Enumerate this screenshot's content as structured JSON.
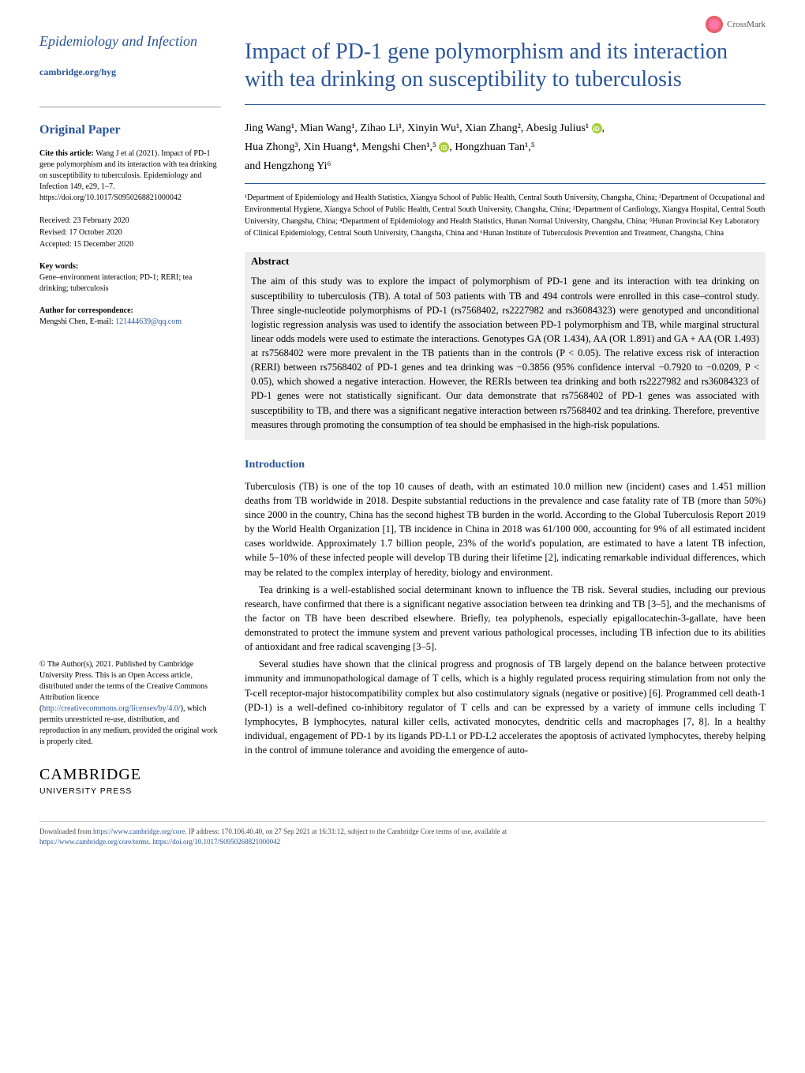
{
  "crossmark_label": "CrossMark",
  "journal": {
    "name": "Epidemiology and Infection",
    "link": "cambridge.org/hyg"
  },
  "sidebar": {
    "paper_type": "Original Paper",
    "cite_label": "Cite this article:",
    "cite_text": "Wang J et al (2021). Impact of PD-1 gene polymorphism and its interaction with tea drinking on susceptibility to tuberculosis. Epidemiology and Infection 149, e29, 1–7. https://doi.org/10.1017/S0950268821000042",
    "received": "Received: 23 February 2020",
    "revised": "Revised: 17 October 2020",
    "accepted": "Accepted: 15 December 2020",
    "kw_label": "Key words:",
    "kw_text": "Gene–environment interaction; PD-1; RERI; tea drinking; tuberculosis",
    "corr_label": "Author for correspondence:",
    "corr_name": "Mengshi Chen, E-mail: ",
    "corr_email": "121444639@qq.com",
    "license": "© The Author(s), 2021. Published by Cambridge University Press. This is an Open Access article, distributed under the terms of the Creative Commons Attribution licence (",
    "license_link": "http://creativecommons.org/licenses/by/4.0/",
    "license_tail": "), which permits unrestricted re-use, distribution, and reproduction in any medium, provided the original work is properly cited.",
    "cup_name": "CAMBRIDGE",
    "cup_sub": "UNIVERSITY PRESS"
  },
  "article": {
    "title": "Impact of PD-1 gene polymorphism and its interaction with tea drinking on susceptibility to tuberculosis",
    "authors_line1": "Jing Wang¹, Mian Wang¹, Zihao Li¹, Xinyin Wu¹, Xian Zhang², Abesig Julius¹",
    "authors_line2": "Hua Zhong³, Xin Huang⁴, Mengshi Chen¹,⁵",
    "authors_line3": "Hongzhuan Tan¹,⁵",
    "authors_line4": "and Hengzhong Yi⁶",
    "affiliations": "¹Department of Epidemiology and Health Statistics, Xiangya School of Public Health, Central South University, Changsha, China; ²Department of Occupational and Environmental Hygiene, Xiangya School of Public Health, Central South University, Changsha, China; ³Department of Cardiology, Xiangya Hospital, Central South University, Changsha, China; ⁴Department of Epidemiology and Health Statistics, Hunan Normal University, Changsha, China; ⁵Hunan Provincial Key Laboratory of Clinical Epidemiology, Central South University, Changsha, China and ⁶Hunan Institute of Tuberculosis Prevention and Treatment, Changsha, China",
    "abstract_label": "Abstract",
    "abstract": "The aim of this study was to explore the impact of polymorphism of PD-1 gene and its interaction with tea drinking on susceptibility to tuberculosis (TB). A total of 503 patients with TB and 494 controls were enrolled in this case–control study. Three single-nucleotide polymorphisms of PD-1 (rs7568402, rs2227982 and rs36084323) were genotyped and unconditional logistic regression analysis was used to identify the association between PD-1 polymorphism and TB, while marginal structural linear odds models were used to estimate the interactions. Genotypes GA (OR 1.434), AA (OR 1.891) and GA + AA (OR 1.493) at rs7568402 were more prevalent in the TB patients than in the controls (P < 0.05). The relative excess risk of interaction (RERI) between rs7568402 of PD-1 genes and tea drinking was −0.3856 (95% confidence interval −0.7920 to −0.0209, P < 0.05), which showed a negative interaction. However, the RERIs between tea drinking and both rs2227982 and rs36084323 of PD-1 genes were not statistically significant. Our data demonstrate that rs7568402 of PD-1 genes was associated with susceptibility to TB, and there was a significant negative interaction between rs7568402 and tea drinking. Therefore, preventive measures through promoting the consumption of tea should be emphasised in the high-risk populations.",
    "intro_label": "Introduction",
    "intro_p1": "Tuberculosis (TB) is one of the top 10 causes of death, with an estimated 10.0 million new (incident) cases and 1.451 million deaths from TB worldwide in 2018. Despite substantial reductions in the prevalence and case fatality rate of TB (more than 50%) since 2000 in the country, China has the second highest TB burden in the world. According to the Global Tuberculosis Report 2019 by the World Health Organization [1], TB incidence in China in 2018 was 61/100 000, accounting for 9% of all estimated incident cases worldwide. Approximately 1.7 billion people, 23% of the world's population, are estimated to have a latent TB infection, while 5–10% of these infected people will develop TB during their lifetime [2], indicating remarkable individual differences, which may be related to the complex interplay of heredity, biology and environment.",
    "intro_p2": "Tea drinking is a well-established social determinant known to influence the TB risk. Several studies, including our previous research, have confirmed that there is a significant negative association between tea drinking and TB [3–5], and the mechanisms of the factor on TB have been described elsewhere. Briefly, tea polyphenols, especially epigallocatechin-3-gallate, have been demonstrated to protect the immune system and prevent various pathological processes, including TB infection due to its abilities of antioxidant and free radical scavenging [3–5].",
    "intro_p3": "Several studies have shown that the clinical progress and prognosis of TB largely depend on the balance between protective immunity and immunopathological damage of T cells, which is a highly regulated process requiring stimulation from not only the T-cell receptor-major histocompatibility complex but also costimulatory signals (negative or positive) [6]. Programmed cell death-1 (PD-1) is a well-defined co-inhibitory regulator of T cells and can be expressed by a variety of immune cells including T lymphocytes, B lymphocytes, natural killer cells, activated monocytes, dendritic cells and macrophages [7, 8]. In a healthy individual, engagement of PD-1 by its ligands PD-L1 or PD-L2 accelerates the apoptosis of activated lymphocytes, thereby helping in the control of immune tolerance and avoiding the emergence of auto-"
  },
  "footer": {
    "line1_a": "Downloaded from ",
    "line1_link1": "https://www.cambridge.org/core",
    "line1_b": ". IP address: 170.106.40.40, on 27 Sep 2021 at 16:31:12, subject to the Cambridge Core terms of use, available at",
    "line2_link": "https://www.cambridge.org/core/terms",
    "line2_b": ". ",
    "line2_link2": "https://doi.org/10.1017/S0950268821000042"
  },
  "colors": {
    "brand": "#2a5599",
    "abstract_bg": "#eeeeee",
    "orcid": "#a6ce39"
  }
}
